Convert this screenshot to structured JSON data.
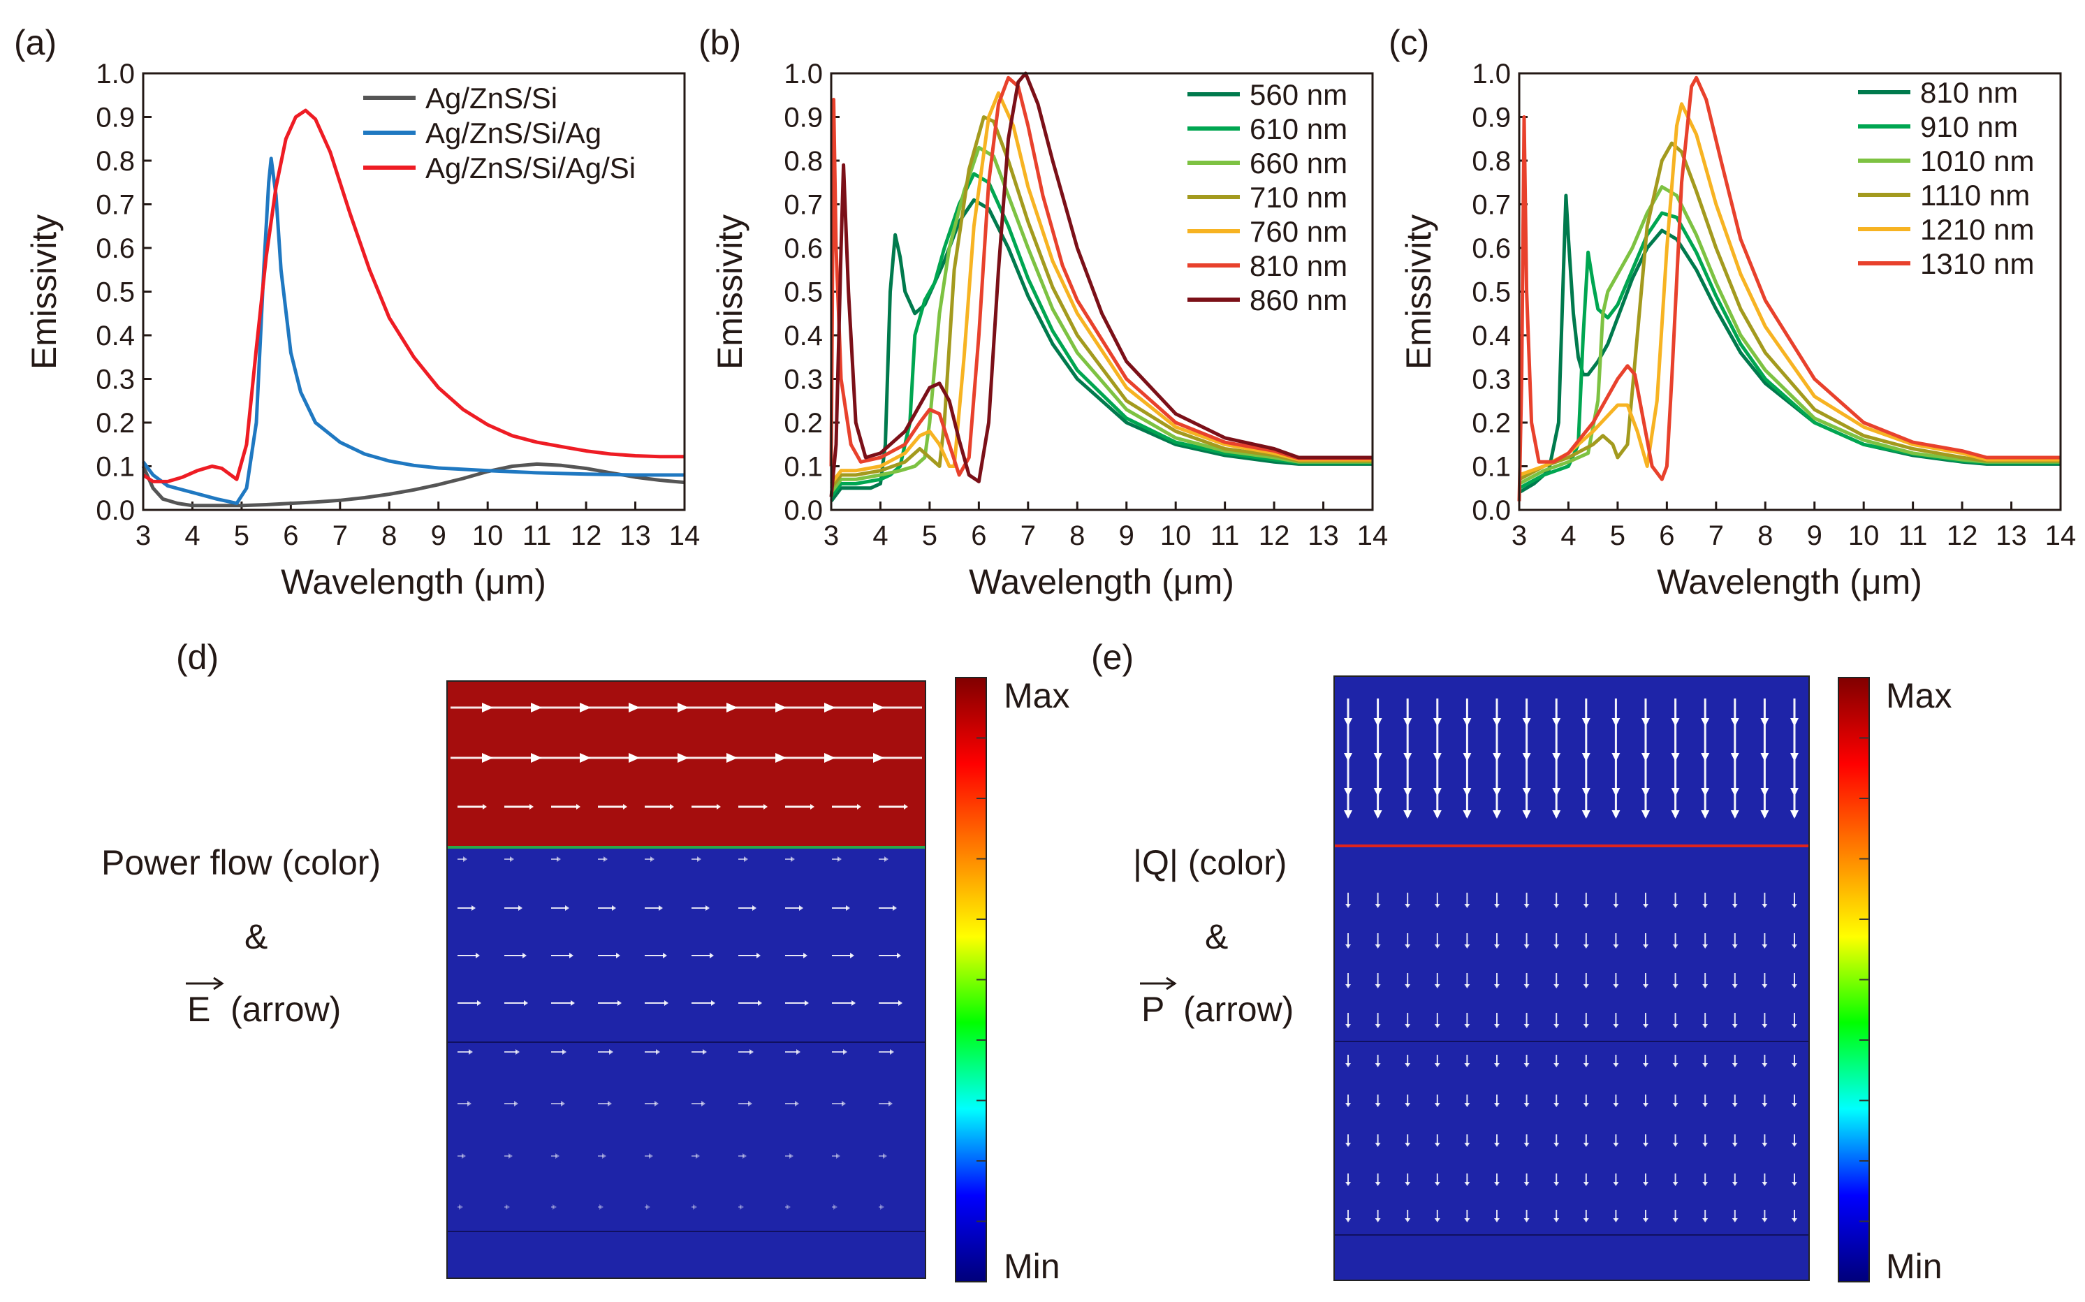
{
  "chart_data": [
    {
      "id": "a",
      "panel_label": "(a)",
      "type": "line",
      "xlabel": "Wavelength (μm)",
      "ylabel": "Emissivity",
      "xlim": [
        3,
        14
      ],
      "ylim": [
        0,
        1.0
      ],
      "xticks": [
        "3",
        "4",
        "5",
        "6",
        "7",
        "8",
        "9",
        "10",
        "11",
        "12",
        "13",
        "14"
      ],
      "yticks": [
        "0.0",
        "0.1",
        "0.2",
        "0.3",
        "0.4",
        "0.5",
        "0.6",
        "0.7",
        "0.8",
        "0.9",
        "1.0"
      ],
      "legend_position": "top-right",
      "series": [
        {
          "name": "Ag/ZnS/Si",
          "color": "#555555",
          "x": [
            3.0,
            3.2,
            3.4,
            3.7,
            4.0,
            4.5,
            5.0,
            5.5,
            6.0,
            6.5,
            7.0,
            7.5,
            8.0,
            8.5,
            9.0,
            9.5,
            10.0,
            10.5,
            11.0,
            11.5,
            12.0,
            12.5,
            13.0,
            13.5,
            14.0
          ],
          "y": [
            0.1,
            0.05,
            0.025,
            0.015,
            0.01,
            0.01,
            0.01,
            0.012,
            0.015,
            0.018,
            0.022,
            0.028,
            0.036,
            0.046,
            0.058,
            0.072,
            0.088,
            0.1,
            0.105,
            0.102,
            0.095,
            0.085,
            0.075,
            0.068,
            0.063
          ]
        },
        {
          "name": "Ag/ZnS/Si/Ag",
          "color": "#1f78c1",
          "x": [
            3.0,
            3.2,
            3.5,
            4.0,
            4.5,
            4.9,
            5.1,
            5.3,
            5.45,
            5.55,
            5.6,
            5.7,
            5.8,
            6.0,
            6.2,
            6.5,
            7.0,
            7.5,
            8.0,
            8.5,
            9.0,
            10.0,
            11.0,
            12.0,
            13.0,
            14.0
          ],
          "y": [
            0.11,
            0.08,
            0.055,
            0.04,
            0.025,
            0.015,
            0.05,
            0.2,
            0.55,
            0.75,
            0.805,
            0.72,
            0.55,
            0.36,
            0.27,
            0.2,
            0.155,
            0.128,
            0.112,
            0.102,
            0.096,
            0.09,
            0.085,
            0.082,
            0.08,
            0.08
          ]
        },
        {
          "name": "Ag/ZnS/Si/Ag/Si",
          "color": "#ee1c24",
          "x": [
            3.0,
            3.2,
            3.5,
            3.8,
            4.1,
            4.4,
            4.6,
            4.9,
            5.1,
            5.3,
            5.5,
            5.7,
            5.9,
            6.1,
            6.3,
            6.5,
            6.8,
            7.2,
            7.6,
            8.0,
            8.5,
            9.0,
            9.5,
            10.0,
            10.5,
            11.0,
            11.5,
            12.0,
            12.5,
            13.0,
            13.5,
            14.0
          ],
          "y": [
            0.08,
            0.065,
            0.065,
            0.075,
            0.09,
            0.1,
            0.095,
            0.07,
            0.15,
            0.37,
            0.58,
            0.74,
            0.85,
            0.9,
            0.915,
            0.895,
            0.82,
            0.68,
            0.55,
            0.44,
            0.35,
            0.28,
            0.23,
            0.195,
            0.17,
            0.155,
            0.145,
            0.135,
            0.128,
            0.124,
            0.122,
            0.122
          ]
        }
      ]
    },
    {
      "id": "b",
      "panel_label": "(b)",
      "type": "line",
      "xlabel": "Wavelength (μm)",
      "ylabel": "Emissivity",
      "xlim": [
        3,
        14
      ],
      "ylim": [
        0,
        1.0
      ],
      "xticks": [
        "3",
        "4",
        "5",
        "6",
        "7",
        "8",
        "9",
        "10",
        "11",
        "12",
        "13",
        "14"
      ],
      "yticks": [
        "0.0",
        "0.1",
        "0.2",
        "0.3",
        "0.4",
        "0.5",
        "0.6",
        "0.7",
        "0.8",
        "0.9",
        "1.0"
      ],
      "legend_position": "top-right",
      "series": [
        {
          "name": "560 nm",
          "color": "#007a4d",
          "x": [
            3.0,
            3.2,
            3.5,
            3.8,
            4.0,
            4.1,
            4.2,
            4.3,
            4.4,
            4.5,
            4.7,
            4.9,
            5.1,
            5.3,
            5.6,
            5.9,
            6.2,
            6.6,
            7.0,
            7.5,
            8.0,
            9.0,
            10.0,
            11.0,
            12.0,
            12.5,
            13.0,
            14.0
          ],
          "y": [
            0.02,
            0.05,
            0.05,
            0.05,
            0.06,
            0.15,
            0.5,
            0.63,
            0.58,
            0.5,
            0.45,
            0.47,
            0.52,
            0.57,
            0.66,
            0.71,
            0.69,
            0.6,
            0.49,
            0.38,
            0.3,
            0.2,
            0.15,
            0.125,
            0.11,
            0.105,
            0.105,
            0.105
          ]
        },
        {
          "name": "610 nm",
          "color": "#00a651",
          "x": [
            3.0,
            3.2,
            3.5,
            4.0,
            4.2,
            4.4,
            4.6,
            4.7,
            4.9,
            5.1,
            5.3,
            5.6,
            5.9,
            6.2,
            6.6,
            7.0,
            7.5,
            8.0,
            9.0,
            10.0,
            11.0,
            12.0,
            12.5,
            14.0
          ],
          "y": [
            0.03,
            0.06,
            0.06,
            0.07,
            0.08,
            0.1,
            0.2,
            0.4,
            0.48,
            0.52,
            0.6,
            0.7,
            0.77,
            0.75,
            0.65,
            0.53,
            0.41,
            0.32,
            0.21,
            0.155,
            0.13,
            0.115,
            0.108,
            0.108
          ]
        },
        {
          "name": "660 nm",
          "color": "#7dc242",
          "x": [
            3.0,
            3.2,
            3.5,
            4.0,
            4.4,
            4.7,
            4.9,
            5.0,
            5.2,
            5.4,
            5.7,
            6.0,
            6.3,
            6.6,
            7.0,
            7.5,
            8.0,
            9.0,
            10.0,
            11.0,
            12.0,
            12.5,
            14.0
          ],
          "y": [
            0.04,
            0.07,
            0.07,
            0.08,
            0.09,
            0.1,
            0.12,
            0.2,
            0.45,
            0.6,
            0.73,
            0.83,
            0.81,
            0.72,
            0.6,
            0.46,
            0.36,
            0.23,
            0.165,
            0.135,
            0.12,
            0.11,
            0.11
          ]
        },
        {
          "name": "710 nm",
          "color": "#a39a1e",
          "x": [
            3.0,
            3.2,
            3.5,
            4.0,
            4.5,
            4.8,
            5.0,
            5.2,
            5.3,
            5.5,
            5.8,
            6.1,
            6.3,
            6.6,
            7.0,
            7.5,
            8.0,
            9.0,
            10.0,
            11.0,
            12.0,
            12.5,
            14.0
          ],
          "y": [
            0.05,
            0.08,
            0.08,
            0.09,
            0.11,
            0.14,
            0.12,
            0.1,
            0.2,
            0.55,
            0.78,
            0.9,
            0.89,
            0.8,
            0.66,
            0.51,
            0.4,
            0.25,
            0.18,
            0.14,
            0.125,
            0.112,
            0.112
          ]
        },
        {
          "name": "760 nm",
          "color": "#f7b322",
          "x": [
            3.0,
            3.2,
            3.5,
            4.0,
            4.5,
            4.8,
            5.0,
            5.2,
            5.4,
            5.5,
            5.7,
            5.9,
            6.2,
            6.4,
            6.7,
            7.0,
            7.5,
            8.0,
            9.0,
            10.0,
            11.0,
            12.0,
            12.5,
            14.0
          ],
          "y": [
            0.06,
            0.09,
            0.09,
            0.1,
            0.13,
            0.17,
            0.18,
            0.15,
            0.1,
            0.1,
            0.35,
            0.65,
            0.9,
            0.955,
            0.88,
            0.74,
            0.57,
            0.45,
            0.28,
            0.19,
            0.15,
            0.13,
            0.115,
            0.115
          ]
        },
        {
          "name": "810 nm",
          "color": "#e8412c",
          "x": [
            3.0,
            3.05,
            3.1,
            3.2,
            3.4,
            3.6,
            4.0,
            4.5,
            4.8,
            5.0,
            5.2,
            5.4,
            5.6,
            5.8,
            6.0,
            6.2,
            6.4,
            6.6,
            6.8,
            7.0,
            7.3,
            7.7,
            8.0,
            9.0,
            10.0,
            11.0,
            12.0,
            12.5,
            14.0
          ],
          "y": [
            0.1,
            0.94,
            0.6,
            0.3,
            0.15,
            0.11,
            0.12,
            0.15,
            0.2,
            0.23,
            0.22,
            0.15,
            0.08,
            0.12,
            0.4,
            0.75,
            0.93,
            0.99,
            0.97,
            0.88,
            0.72,
            0.56,
            0.48,
            0.3,
            0.2,
            0.155,
            0.135,
            0.118,
            0.118
          ]
        },
        {
          "name": "860 nm",
          "color": "#7b1018",
          "x": [
            3.0,
            3.1,
            3.2,
            3.25,
            3.35,
            3.5,
            3.7,
            4.0,
            4.5,
            4.8,
            5.0,
            5.2,
            5.4,
            5.6,
            5.8,
            6.0,
            6.2,
            6.4,
            6.6,
            6.8,
            6.95,
            7.2,
            7.5,
            8.0,
            8.5,
            9.0,
            10.0,
            11.0,
            12.0,
            12.5,
            14.0
          ],
          "y": [
            0.03,
            0.15,
            0.6,
            0.79,
            0.5,
            0.2,
            0.12,
            0.13,
            0.18,
            0.24,
            0.28,
            0.29,
            0.25,
            0.16,
            0.08,
            0.065,
            0.2,
            0.55,
            0.85,
            0.98,
            1.0,
            0.93,
            0.8,
            0.6,
            0.45,
            0.34,
            0.22,
            0.165,
            0.14,
            0.12,
            0.12
          ]
        }
      ]
    },
    {
      "id": "c",
      "panel_label": "(c)",
      "type": "line",
      "xlabel": "Wavelength (μm)",
      "ylabel": "Emissivity",
      "xlim": [
        3,
        14
      ],
      "ylim": [
        0,
        1.0
      ],
      "xticks": [
        "3",
        "4",
        "5",
        "6",
        "7",
        "8",
        "9",
        "10",
        "11",
        "12",
        "13",
        "14"
      ],
      "yticks": [
        "0.0",
        "0.1",
        "0.2",
        "0.3",
        "0.4",
        "0.5",
        "0.6",
        "0.7",
        "0.8",
        "0.9",
        "1.0"
      ],
      "legend_position": "top-right",
      "series": [
        {
          "name": "810 nm",
          "color": "#007a4d",
          "x": [
            3.0,
            3.3,
            3.6,
            3.8,
            3.9,
            3.95,
            4.0,
            4.1,
            4.2,
            4.3,
            4.4,
            4.6,
            4.8,
            5.0,
            5.3,
            5.6,
            5.9,
            6.2,
            6.6,
            7.0,
            7.5,
            8.0,
            9.0,
            10.0,
            11.0,
            12.0,
            12.5,
            14.0
          ],
          "y": [
            0.04,
            0.06,
            0.09,
            0.2,
            0.55,
            0.72,
            0.62,
            0.45,
            0.35,
            0.31,
            0.31,
            0.34,
            0.38,
            0.44,
            0.53,
            0.6,
            0.64,
            0.62,
            0.55,
            0.46,
            0.36,
            0.29,
            0.2,
            0.15,
            0.125,
            0.11,
            0.105,
            0.105
          ]
        },
        {
          "name": "910 nm",
          "color": "#00a651",
          "x": [
            3.0,
            3.5,
            4.0,
            4.2,
            4.3,
            4.4,
            4.5,
            4.6,
            4.8,
            5.0,
            5.3,
            5.6,
            5.9,
            6.2,
            6.6,
            7.0,
            7.5,
            8.0,
            9.0,
            10.0,
            11.0,
            12.0,
            12.5,
            14.0
          ],
          "y": [
            0.05,
            0.08,
            0.1,
            0.15,
            0.4,
            0.59,
            0.52,
            0.46,
            0.44,
            0.47,
            0.55,
            0.63,
            0.68,
            0.67,
            0.59,
            0.49,
            0.38,
            0.3,
            0.2,
            0.15,
            0.128,
            0.112,
            0.108,
            0.108
          ]
        },
        {
          "name": "1010 nm",
          "color": "#7dc242",
          "x": [
            3.0,
            3.5,
            4.0,
            4.4,
            4.6,
            4.7,
            4.8,
            5.0,
            5.3,
            5.6,
            5.9,
            6.2,
            6.6,
            7.0,
            7.5,
            8.0,
            9.0,
            10.0,
            11.0,
            12.0,
            12.5,
            14.0
          ],
          "y": [
            0.06,
            0.09,
            0.11,
            0.13,
            0.25,
            0.45,
            0.5,
            0.54,
            0.6,
            0.68,
            0.74,
            0.72,
            0.63,
            0.52,
            0.4,
            0.32,
            0.21,
            0.16,
            0.13,
            0.115,
            0.11,
            0.11
          ]
        },
        {
          "name": "1110 nm",
          "color": "#a39a1e",
          "x": [
            3.0,
            3.5,
            4.0,
            4.5,
            4.7,
            4.9,
            5.0,
            5.2,
            5.4,
            5.6,
            5.9,
            6.1,
            6.3,
            6.6,
            7.0,
            7.5,
            8.0,
            9.0,
            10.0,
            11.0,
            12.0,
            12.5,
            14.0
          ],
          "y": [
            0.07,
            0.1,
            0.12,
            0.15,
            0.17,
            0.15,
            0.12,
            0.15,
            0.4,
            0.65,
            0.8,
            0.84,
            0.82,
            0.73,
            0.6,
            0.46,
            0.36,
            0.23,
            0.17,
            0.14,
            0.12,
            0.112,
            0.112
          ]
        },
        {
          "name": "1210 nm",
          "color": "#f7b322",
          "x": [
            3.0,
            3.5,
            4.0,
            4.5,
            5.0,
            5.2,
            5.4,
            5.6,
            5.8,
            6.0,
            6.2,
            6.3,
            6.6,
            7.0,
            7.5,
            8.0,
            9.0,
            10.0,
            11.0,
            12.0,
            12.5,
            14.0
          ],
          "y": [
            0.08,
            0.1,
            0.13,
            0.18,
            0.24,
            0.24,
            0.18,
            0.1,
            0.25,
            0.6,
            0.88,
            0.93,
            0.86,
            0.7,
            0.54,
            0.42,
            0.26,
            0.19,
            0.15,
            0.13,
            0.115,
            0.115
          ]
        },
        {
          "name": "1310 nm",
          "color": "#e8412c",
          "x": [
            3.0,
            3.05,
            3.1,
            3.15,
            3.25,
            3.4,
            3.7,
            4.0,
            4.5,
            5.0,
            5.2,
            5.35,
            5.5,
            5.7,
            5.9,
            6.0,
            6.1,
            6.3,
            6.5,
            6.6,
            6.8,
            7.1,
            7.5,
            8.0,
            9.0,
            10.0,
            11.0,
            12.0,
            12.5,
            14.0
          ],
          "y": [
            0.02,
            0.3,
            0.9,
            0.5,
            0.2,
            0.11,
            0.11,
            0.13,
            0.2,
            0.3,
            0.33,
            0.31,
            0.22,
            0.1,
            0.07,
            0.1,
            0.3,
            0.75,
            0.97,
            0.99,
            0.94,
            0.8,
            0.62,
            0.48,
            0.3,
            0.2,
            0.155,
            0.135,
            0.12,
            0.12
          ]
        }
      ]
    }
  ],
  "field_maps": [
    {
      "id": "d",
      "panel_label": "(d)",
      "caption_line1": "Power flow (color)",
      "caption_amp": "&",
      "vector_symbol": "E",
      "vector_text": "(arrow)",
      "arrow_direction": "right",
      "colorbar_max": "Max",
      "colorbar_min": "Min",
      "top_region_color": "#a50d0d",
      "bottom_region_color": "#1e24a8",
      "interface_color": "#2aa84a"
    },
    {
      "id": "e",
      "panel_label": "(e)",
      "caption_line1": "|Q| (color)",
      "caption_amp": "&",
      "vector_symbol": "P",
      "vector_text": "(arrow)",
      "arrow_direction": "down",
      "colorbar_max": "Max",
      "colorbar_min": "Min",
      "top_region_color": "#1e24a8",
      "bottom_region_color": "#1e24a8",
      "interface_color": "#e0241c"
    }
  ],
  "colorbar_colors": [
    "#00007a",
    "#0000ff",
    "#00ffff",
    "#00ff00",
    "#ffff00",
    "#ff7f00",
    "#ff0000",
    "#800000"
  ]
}
